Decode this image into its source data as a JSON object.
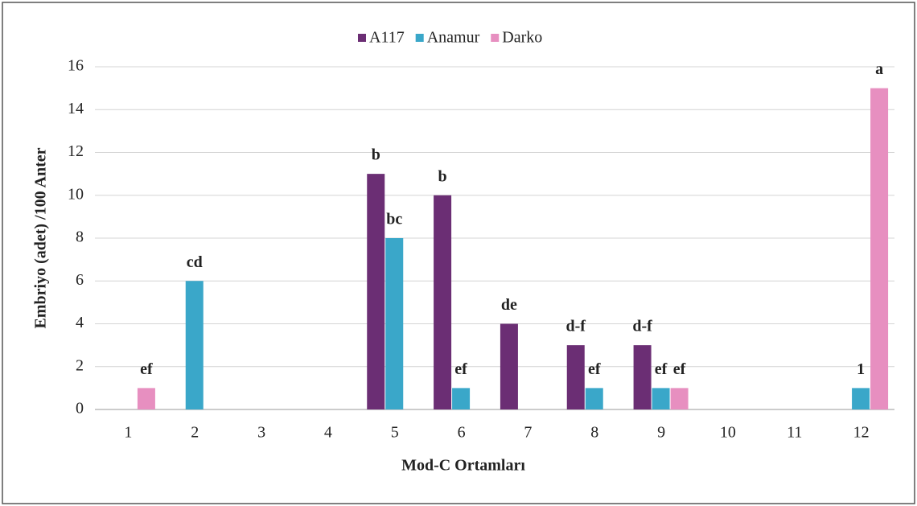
{
  "chart_data": {
    "type": "bar",
    "categories": [
      "1",
      "2",
      "3",
      "4",
      "5",
      "6",
      "7",
      "8",
      "9",
      "10",
      "11",
      "12"
    ],
    "series": [
      {
        "name": "A117",
        "color": "#6b2e74",
        "values": [
          0,
          0,
          0,
          0,
          11,
          10,
          4,
          3,
          3,
          0,
          0,
          0
        ],
        "value_labels": [
          null,
          null,
          null,
          null,
          "b",
          "b",
          "de",
          "d-f",
          "d-f",
          null,
          null,
          null
        ]
      },
      {
        "name": "Anamur",
        "color": "#3aa7c9",
        "values": [
          0,
          6,
          0,
          0,
          8,
          1,
          0,
          1,
          1,
          0,
          0,
          1
        ],
        "value_labels": [
          null,
          "cd",
          null,
          null,
          "bc",
          "ef",
          null,
          "ef",
          "ef",
          null,
          null,
          "1"
        ]
      },
      {
        "name": "Darko",
        "color": "#e78fc0",
        "values": [
          1,
          0,
          0,
          0,
          0,
          0,
          0,
          0,
          1,
          0,
          0,
          15
        ],
        "value_labels": [
          "ef",
          null,
          null,
          null,
          null,
          null,
          null,
          null,
          "ef",
          null,
          null,
          "a"
        ]
      }
    ],
    "ylabel": "Embriyo (adet) /100 Anter",
    "xlabel": "Mod-C Ortamları",
    "ylim": [
      0,
      16
    ],
    "yticks": [
      0,
      2,
      4,
      6,
      8,
      10,
      12,
      14,
      16
    ],
    "grid": true,
    "legend": "top"
  }
}
